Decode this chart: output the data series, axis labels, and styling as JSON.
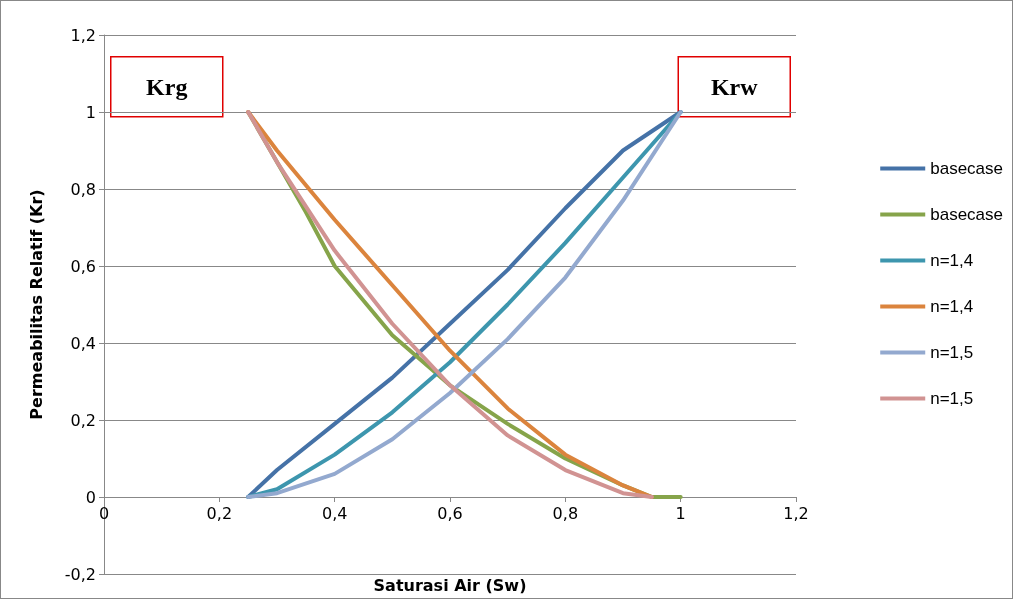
{
  "chart_data": {
    "type": "line",
    "xlabel": "Saturasi Air (Sw)",
    "ylabel": "Permeabilitas Relatif (Kr)",
    "annotations": [
      "Krg",
      "Krw"
    ],
    "xlim": [
      0,
      1.2
    ],
    "xticks": [
      0,
      {
        "value": 0.2,
        "label": "0,2"
      },
      {
        "value": 0.4,
        "label": "0,4"
      },
      {
        "value": 0.6,
        "label": "0,6"
      },
      {
        "value": 0.8,
        "label": "0,8"
      },
      1,
      {
        "value": 1.2,
        "label": "1,2"
      }
    ],
    "ylim": [
      -0.2,
      1.2
    ],
    "yticks": [
      {
        "value": -0.2,
        "label": "-0,2"
      },
      0,
      {
        "value": 0.2,
        "label": "0,2"
      },
      {
        "value": 0.4,
        "label": "0,4"
      },
      {
        "value": 0.6,
        "label": "0,6"
      },
      {
        "value": 0.8,
        "label": "0,8"
      },
      1,
      {
        "value": 1.2,
        "label": "1,2"
      }
    ],
    "grid": "y",
    "legend": "right",
    "marker": "none",
    "line_style": "solid",
    "series": [
      {
        "name": "basecase",
        "color": "#4572a7",
        "x": [
          0.25,
          0.3,
          0.4,
          0.5,
          0.6,
          0.7,
          0.8,
          0.9,
          0.95,
          1
        ],
        "values": [
          0,
          0.07,
          0.19,
          0.31,
          0.45,
          0.59,
          0.75,
          0.9,
          0.95,
          1
        ]
      },
      {
        "name": "basecase",
        "color": "#86a44a",
        "x": [
          0.25,
          0.3,
          0.35,
          0.4,
          0.5,
          0.6,
          0.7,
          0.8,
          0.9,
          0.95,
          0.97,
          1
        ],
        "values": [
          1,
          0.87,
          0.74,
          0.6,
          0.42,
          0.29,
          0.19,
          0.1,
          0.03,
          0,
          0,
          0
        ]
      },
      {
        "name": "n=1,4",
        "color": "#3d96ae",
        "x": [
          0.25,
          0.3,
          0.4,
          0.5,
          0.6,
          0.7,
          0.8,
          0.9,
          1
        ],
        "values": [
          0,
          0.02,
          0.11,
          0.22,
          0.35,
          0.5,
          0.66,
          0.83,
          1
        ]
      },
      {
        "name": "n=1,4",
        "color": "#db843d",
        "x": [
          0.25,
          0.3,
          0.4,
          0.5,
          0.6,
          0.7,
          0.8,
          0.9,
          0.95
        ],
        "values": [
          1,
          0.9,
          0.72,
          0.55,
          0.38,
          0.23,
          0.11,
          0.03,
          0
        ]
      },
      {
        "name": "n=1,5",
        "color": "#93a9cf",
        "x": [
          0.25,
          0.3,
          0.4,
          0.5,
          0.6,
          0.7,
          0.8,
          0.9,
          1
        ],
        "values": [
          0,
          0.01,
          0.06,
          0.15,
          0.27,
          0.41,
          0.57,
          0.77,
          1
        ]
      },
      {
        "name": "n=1,5",
        "color": "#d19392",
        "x": [
          0.25,
          0.3,
          0.4,
          0.5,
          0.6,
          0.7,
          0.8,
          0.9,
          0.95
        ],
        "values": [
          1,
          0.87,
          0.64,
          0.45,
          0.29,
          0.16,
          0.07,
          0.01,
          0
        ]
      }
    ]
  }
}
